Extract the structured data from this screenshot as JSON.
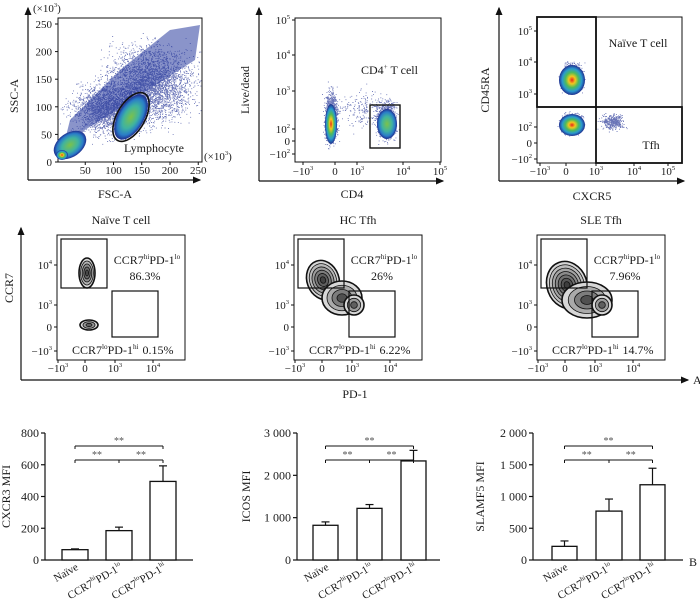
{
  "panel_a": {
    "label": "A",
    "fsc_ssc": {
      "x_label": "FSC-A",
      "y_label": "SSC-A",
      "x_unit": [
        "(×10",
        "3",
        ")"
      ],
      "y_unit": [
        "(×10",
        "3",
        ")"
      ],
      "x_ticks": [
        "50",
        "100",
        "150",
        "200",
        "250"
      ],
      "y_ticks": [
        "0",
        "50",
        "100",
        "150",
        "200",
        "250"
      ],
      "gate_label": "Lymphocyte"
    },
    "cd4_live": {
      "x_label": "CD4",
      "y_label": "Live/dead",
      "x_ticks": [
        [
          "−10",
          "3"
        ],
        [
          "0"
        ],
        [
          "10",
          "3"
        ],
        [
          "10",
          "4"
        ],
        [
          "10",
          "5"
        ]
      ],
      "y_ticks": [
        [
          "10",
          "5"
        ],
        [
          "10",
          "4"
        ],
        [
          "10",
          "3"
        ],
        [
          "10",
          "2"
        ],
        [
          "0"
        ],
        [
          "−10",
          "2"
        ]
      ],
      "gate_label": [
        "CD4",
        "+",
        " T cell"
      ]
    },
    "cxcr5_cd45ra": {
      "x_label": "CXCR5",
      "y_label": "CD45RA",
      "x_ticks": [
        [
          "−10",
          "3"
        ],
        [
          "0"
        ],
        [
          "10",
          "3"
        ],
        [
          "10",
          "4"
        ],
        [
          "10",
          "5"
        ]
      ],
      "y_ticks": [
        [
          "10",
          "5"
        ],
        [
          "10",
          "4"
        ],
        [
          "10",
          "3"
        ],
        [
          "10",
          "2"
        ],
        [
          "0"
        ],
        [
          "−10",
          "2"
        ]
      ],
      "gate_labels": [
        "Naïve T cell",
        "Tfh"
      ]
    },
    "ccr7_pd1": {
      "x_label": "PD-1",
      "y_label": "CCR7",
      "x_ticks": [
        [
          "−10",
          "3"
        ],
        [
          "0"
        ],
        [
          "10",
          "3"
        ],
        [
          "10",
          "4"
        ]
      ],
      "y_ticks": [
        [
          "10",
          "4"
        ],
        [
          "10",
          "3"
        ],
        [
          "0"
        ],
        [
          "−10",
          "3"
        ]
      ],
      "gate_hi": [
        "CCR7",
        "hi",
        "PD-1",
        "lo"
      ],
      "gate_lo": [
        "CCR7",
        "lo",
        "PD-1",
        "hi"
      ],
      "panels": [
        {
          "title": "Naïve T cell",
          "hi_lo_percent": "86.3%",
          "lo_hi_percent": "0.15%"
        },
        {
          "title": "HC Tfh",
          "hi_lo_percent": "26%",
          "lo_hi_percent": "6.22%"
        },
        {
          "title": "SLE Tfh",
          "hi_lo_percent": "7.96%",
          "lo_hi_percent": "14.7%"
        }
      ]
    }
  },
  "panel_b": {
    "label": "B"
  },
  "colors": {
    "density_low": "#1f2f8f",
    "density_mid": "#33b36b",
    "density_high": "#e8231a",
    "contour": "#222222"
  },
  "chart_data": [
    {
      "type": "bar",
      "ylabel": "CXCR3 MFI",
      "categories": [
        [
          "Naïve"
        ],
        [
          "CCR7",
          "hi",
          "PD-1",
          "lo"
        ],
        [
          "CCR7",
          "lo",
          "PD-1",
          "hi"
        ]
      ],
      "values": [
        65,
        185,
        495
      ],
      "errors": [
        5,
        22,
        98
      ],
      "ylim": [
        0,
        800
      ],
      "yticks": [
        "0",
        "200",
        "400",
        "600",
        "800"
      ],
      "significance": [
        {
          "from": 0,
          "to": 2,
          "label": "**"
        },
        {
          "from": 0,
          "to": 1,
          "label": "**"
        },
        {
          "from": 1,
          "to": 2,
          "label": "**"
        }
      ]
    },
    {
      "type": "bar",
      "ylabel": "ICOS MFI",
      "categories": [
        [
          "Naïve"
        ],
        [
          "CCR7",
          "hi",
          "PD-1",
          "lo"
        ],
        [
          "CCR7",
          "lo",
          "PD-1",
          "hi"
        ]
      ],
      "values": [
        820,
        1220,
        2340
      ],
      "errors": [
        80,
        90,
        250
      ],
      "ylim": [
        0,
        3000
      ],
      "yticks": [
        "0",
        "1 000",
        "2 000",
        "3 000"
      ],
      "significance": [
        {
          "from": 0,
          "to": 2,
          "label": "**"
        },
        {
          "from": 0,
          "to": 1,
          "label": "**"
        },
        {
          "from": 1,
          "to": 2,
          "label": "**"
        }
      ]
    },
    {
      "type": "bar",
      "ylabel": "SLAMF5 MFI",
      "categories": [
        [
          "Naïve"
        ],
        [
          "CCR7",
          "hi",
          "PD-1",
          "lo"
        ],
        [
          "CCR7",
          "lo",
          "PD-1",
          "hi"
        ]
      ],
      "values": [
        215,
        770,
        1185
      ],
      "errors": [
        85,
        190,
        260
      ],
      "ylim": [
        0,
        2000
      ],
      "yticks": [
        "0",
        "500",
        "1 000",
        "1 500",
        "2 000"
      ],
      "significance": [
        {
          "from": 0,
          "to": 2,
          "label": "**"
        },
        {
          "from": 0,
          "to": 1,
          "label": "**"
        },
        {
          "from": 1,
          "to": 2,
          "label": "**"
        }
      ]
    }
  ]
}
